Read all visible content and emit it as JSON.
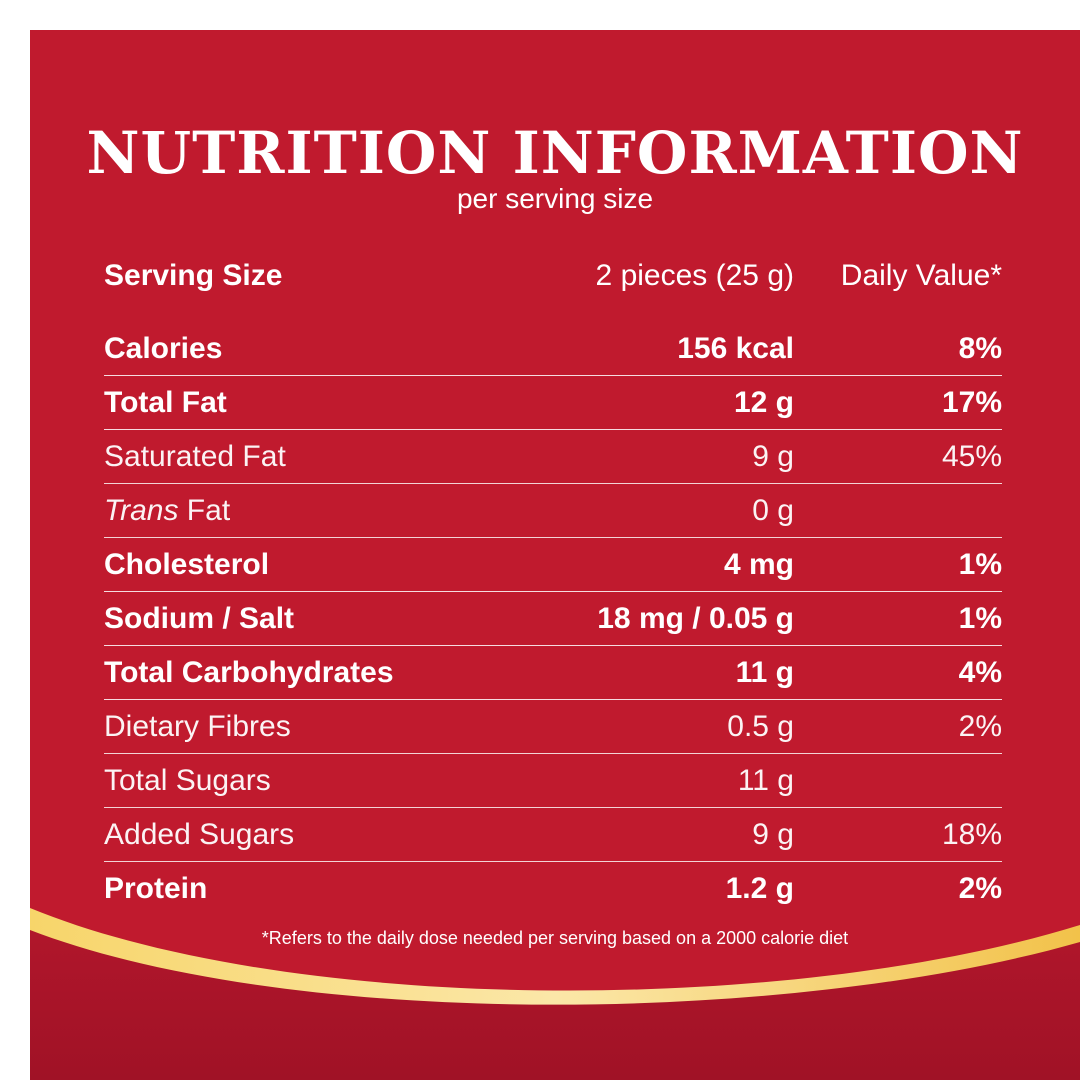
{
  "header": {
    "title": "NUTRITION INFORMATION",
    "subtitle": "per serving size"
  },
  "table": {
    "header": {
      "name": "Serving Size",
      "amount": "2 pieces (25 g)",
      "dv": "Daily Value*"
    },
    "rows": [
      {
        "name": "Calories",
        "amount": "156 kcal",
        "dv": "8%",
        "bold": true
      },
      {
        "name": "Total Fat",
        "amount": "12 g",
        "dv": "17%",
        "bold": true
      },
      {
        "name": "Saturated Fat",
        "amount": "9 g",
        "dv": "45%",
        "bold": false
      },
      {
        "name": "Trans Fat",
        "amount": "0 g",
        "dv": "",
        "bold": false,
        "italic_prefix": "Trans",
        "name_rest": " Fat"
      },
      {
        "name": "Cholesterol",
        "amount": "4 mg",
        "dv": "1%",
        "bold": true
      },
      {
        "name": "Sodium / Salt",
        "amount": "18 mg / 0.05 g",
        "dv": "1%",
        "bold": true
      },
      {
        "name": "Total Carbohydrates",
        "amount": "11 g",
        "dv": "4%",
        "bold": true
      },
      {
        "name": "Dietary Fibres",
        "amount": "0.5 g",
        "dv": "2%",
        "bold": false
      },
      {
        "name": "Total Sugars",
        "amount": "11 g",
        "dv": "",
        "bold": false
      },
      {
        "name": "Added Sugars",
        "amount": "9 g",
        "dv": "18%",
        "bold": false
      },
      {
        "name": "Protein",
        "amount": "1.2 g",
        "dv": "2%",
        "bold": true
      }
    ]
  },
  "footnote": "*Refers to the daily dose needed per serving based on a 2000 calorie diet",
  "colors": {
    "background": "#c01a2e",
    "band_dark": "#a8132a",
    "gold": "#f3c64a"
  }
}
